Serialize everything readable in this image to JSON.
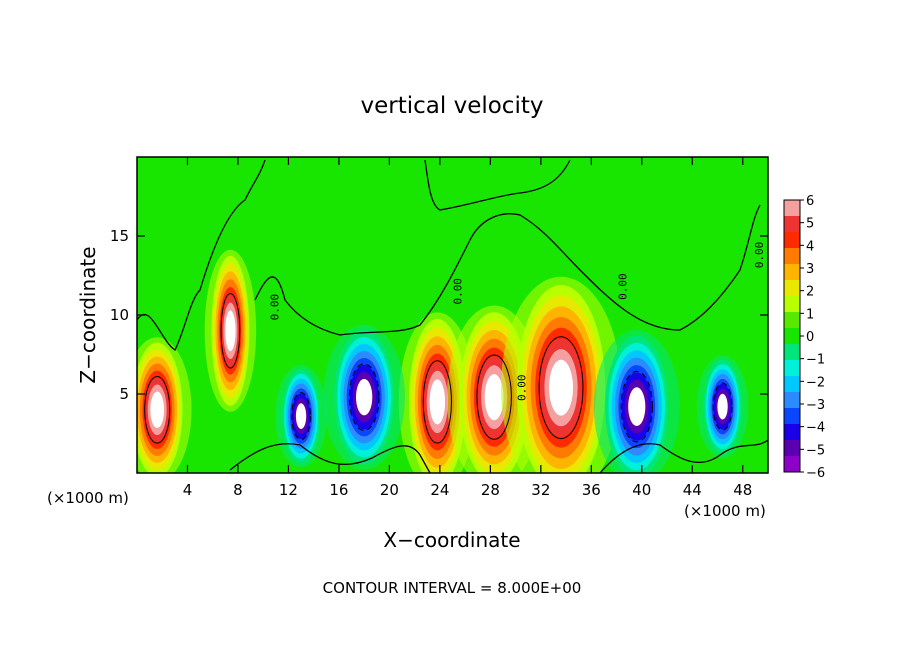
{
  "chart_data": {
    "type": "heatmap",
    "title": "vertical velocity",
    "xlabel": "X−coordinate",
    "ylabel": "Z−coordinate",
    "x_units_left": "(×1000 m)",
    "x_units_right": "(×1000 m)",
    "xlim": [
      0,
      50
    ],
    "ylim": [
      0,
      20
    ],
    "x_ticks": [
      4,
      8,
      12,
      16,
      20,
      24,
      28,
      32,
      36,
      40,
      44,
      48
    ],
    "y_ticks": [
      5,
      10,
      15
    ],
    "footnote": "CONTOUR INTERVAL = 8.000E+00",
    "colorbar": {
      "min": -6,
      "max": 6,
      "tick_labels": [
        "6",
        "5",
        "4",
        "3",
        "2",
        "1",
        "0",
        "−1",
        "−2",
        "−3",
        "−4",
        "−5",
        "−6"
      ],
      "colors": [
        "#f4a0a0",
        "#ee3333",
        "#ff2b00",
        "#ff7a00",
        "#ffb400",
        "#e8e800",
        "#b8ff00",
        "#5ae800",
        "#19e600",
        "#00e57a",
        "#00f0d8",
        "#00c8ff",
        "#2c8cff",
        "#0a46ff",
        "#1a00e6",
        "#5a00b0",
        "#8c00c8"
      ],
      "colors_order": "top-to-bottom"
    },
    "contour_labels": [
      {
        "text": "0.00",
        "x": 11.2,
        "z": 10.5
      },
      {
        "text": "0.00",
        "x": 25.7,
        "z": 11.5
      },
      {
        "text": "0.00",
        "x": 30.8,
        "z": 5.4
      },
      {
        "text": "0.00",
        "x": 38.8,
        "z": 11.8
      },
      {
        "text": "0.00",
        "x": 49.6,
        "z": 13.8
      }
    ],
    "features": [
      {
        "type": "updraft",
        "x": 1.6,
        "z": 4.0,
        "rx": 1.6,
        "rz": 3.4,
        "peak": 16
      },
      {
        "type": "updraft",
        "x": 7.4,
        "z": 9.0,
        "rx": 1.2,
        "rz": 3.8,
        "peak": 12
      },
      {
        "type": "updraft",
        "x": 23.8,
        "z": 4.5,
        "rx": 1.8,
        "rz": 4.2,
        "peak": 12
      },
      {
        "type": "updraft",
        "x": 28.3,
        "z": 4.8,
        "rx": 2.2,
        "rz": 4.3,
        "peak": 16
      },
      {
        "type": "updraft",
        "x": 33.6,
        "z": 5.4,
        "rx": 2.8,
        "rz": 5.2,
        "peak": 16
      },
      {
        "type": "downdraft",
        "x": 13.0,
        "z": 3.6,
        "rx": 1.2,
        "rz": 2.4,
        "peak": -9
      },
      {
        "type": "downdraft",
        "x": 18.0,
        "z": 4.8,
        "rx": 1.9,
        "rz": 3.4,
        "peak": -10
      },
      {
        "type": "downdraft",
        "x": 39.6,
        "z": 4.2,
        "rx": 2.0,
        "rz": 3.6,
        "peak": -11
      },
      {
        "type": "downdraft",
        "x": 46.4,
        "z": 4.2,
        "rx": 1.2,
        "rz": 2.4,
        "peak": -9
      }
    ]
  }
}
